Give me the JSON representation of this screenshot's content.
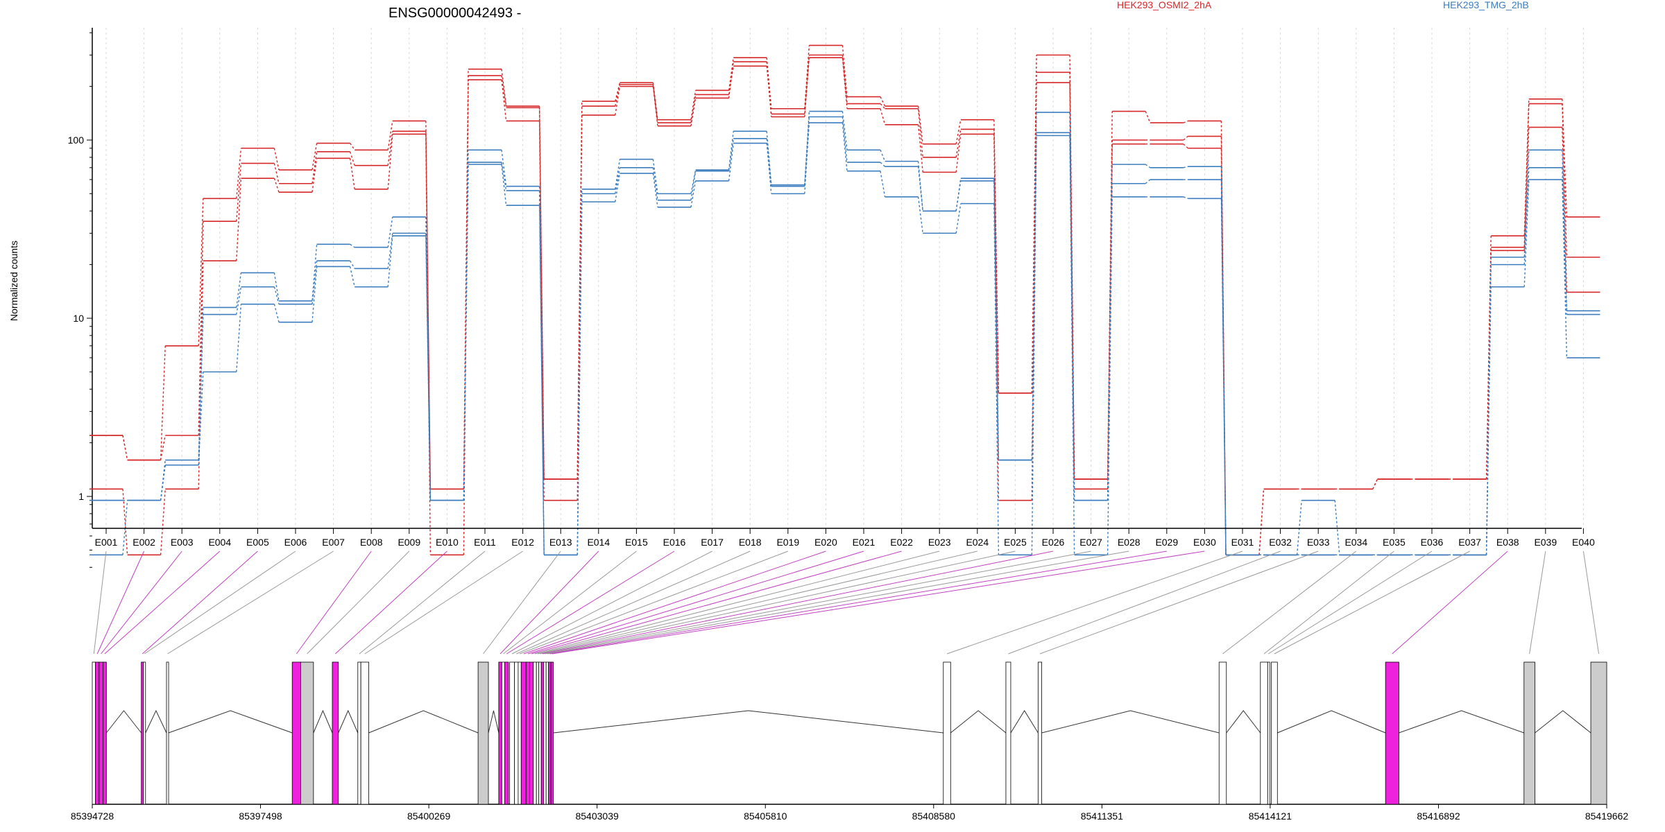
{
  "chart_data": {
    "type": "line",
    "title": "ENSG00000042493 -",
    "ylabel": "Normalized counts",
    "xlabel": "",
    "y_scale": "log",
    "ylim": [
      0.4,
      400
    ],
    "y_ticks": [
      1,
      10,
      100
    ],
    "y_tick_labels": [
      "1",
      "10",
      "100"
    ],
    "grid": "vertical dashed",
    "categories": [
      "E001",
      "E002",
      "E003",
      "E004",
      "E005",
      "E006",
      "E007",
      "E008",
      "E009",
      "E010",
      "E011",
      "E012",
      "E013",
      "E014",
      "E015",
      "E016",
      "E017",
      "E018",
      "E019",
      "E020",
      "E021",
      "E022",
      "E023",
      "E024",
      "E025",
      "E026",
      "E027",
      "E028",
      "E029",
      "E030",
      "E031",
      "E032",
      "E033",
      "E034",
      "E035",
      "E036",
      "E037",
      "E038",
      "E039",
      "E040"
    ],
    "legend": [
      {
        "label": "HEK293_OSMI2_2hA",
        "color": "#d62728"
      },
      {
        "label": "HEK293_TMG_2hB",
        "color": "#3b7dbf"
      }
    ],
    "series": [
      {
        "group": "HEK293_OSMI2_2hA",
        "color": "#d62728",
        "values": [
          2.2,
          1.6,
          7.0,
          47,
          90,
          68,
          96,
          88,
          128,
          1.1,
          250,
          155,
          1.25,
          165,
          210,
          130,
          190,
          290,
          150,
          340,
          175,
          155,
          95,
          130,
          3.8,
          300,
          1.25,
          145,
          125,
          128,
          0.47,
          1.1,
          1.1,
          1.1,
          1.25,
          1.25,
          1.25,
          29,
          170,
          37
        ]
      },
      {
        "group": "HEK293_OSMI2_2hA",
        "color": "#d62728",
        "values": [
          2.2,
          1.6,
          2.2,
          35,
          74,
          57,
          86,
          72,
          112,
          1.1,
          230,
          152,
          1.25,
          155,
          205,
          125,
          180,
          260,
          140,
          300,
          160,
          150,
          80,
          115,
          3.8,
          240,
          1.25,
          100,
          100,
          105,
          0.47,
          1.1,
          1.1,
          1.1,
          1.25,
          1.25,
          1.25,
          25,
          160,
          22
        ]
      },
      {
        "group": "HEK293_OSMI2_2hA",
        "color": "#d62728",
        "values": [
          1.1,
          0.47,
          1.1,
          21,
          61,
          51,
          79,
          53,
          108,
          0.47,
          218,
          128,
          0.95,
          138,
          200,
          120,
          172,
          275,
          135,
          290,
          150,
          122,
          66,
          108,
          0.95,
          210,
          1.1,
          95,
          95,
          90,
          0.47,
          0.47,
          0.47,
          0.47,
          0.47,
          0.47,
          0.47,
          24,
          118,
          14
        ]
      },
      {
        "group": "HEK293_TMG_2hB",
        "color": "#3b7dbf",
        "values": [
          0.95,
          0.95,
          1.6,
          11.5,
          18,
          12.5,
          26,
          25,
          37,
          0.95,
          88,
          55,
          0.47,
          53,
          78,
          50,
          68,
          112,
          56,
          145,
          88,
          76,
          40,
          61,
          1.6,
          143,
          0.95,
          73,
          70,
          71,
          0.47,
          0.47,
          0.95,
          0.47,
          0.47,
          0.47,
          0.47,
          22,
          88,
          11
        ]
      },
      {
        "group": "HEK293_TMG_2hB",
        "color": "#3b7dbf",
        "values": [
          0.95,
          0.95,
          1.5,
          10.5,
          15,
          12,
          21,
          19,
          30,
          0.95,
          75,
          52,
          0.47,
          50,
          70,
          46,
          67,
          102,
          55,
          135,
          75,
          71,
          40,
          59,
          1.6,
          110,
          0.95,
          57,
          60,
          60,
          0.47,
          0.47,
          0.47,
          0.47,
          0.47,
          0.47,
          0.47,
          20,
          70,
          10.5
        ]
      },
      {
        "group": "HEK293_TMG_2hB",
        "color": "#3b7dbf",
        "values": [
          0.47,
          0.95,
          1.5,
          5,
          12,
          9.5,
          19.5,
          15,
          29,
          0.95,
          73,
          43,
          0.47,
          45,
          65,
          42,
          59,
          96,
          50,
          125,
          67,
          48,
          30,
          44,
          0.47,
          106,
          0.47,
          48,
          48,
          47,
          0.47,
          0.47,
          0.47,
          0.47,
          0.47,
          0.47,
          0.47,
          15,
          60,
          6
        ]
      }
    ],
    "genome_axis": {
      "ticks": [
        "85394728",
        "85397498",
        "85400269",
        "85403039",
        "85405810",
        "85408580",
        "85411351",
        "85414121",
        "85416892",
        "85419662"
      ],
      "exons": [
        {
          "id": "E001",
          "start": 85394728,
          "end": 85394780,
          "highlight": false
        },
        {
          "id": "E002",
          "start": 85394780,
          "end": 85394840,
          "highlight": true
        },
        {
          "id": "E003",
          "start": 85394840,
          "end": 85394905,
          "highlight": true
        },
        {
          "id": "E004",
          "start": 85394905,
          "end": 85394960,
          "highlight": true
        },
        {
          "id": "E005",
          "start": 85395535,
          "end": 85395570,
          "highlight": true
        },
        {
          "id": "E006",
          "start": 85395570,
          "end": 85395605,
          "highlight": false
        },
        {
          "id": "E007",
          "start": 85395950,
          "end": 85395985,
          "highlight": false
        },
        {
          "id": "E008",
          "start": 85398020,
          "end": 85398160,
          "highlight": true
        },
        {
          "id": "E009",
          "start": 85398160,
          "end": 85398370,
          "highlight": false
        },
        {
          "id": "E010",
          "start": 85398680,
          "end": 85398780,
          "highlight": true
        },
        {
          "id": "E011",
          "start": 85399100,
          "end": 85399150,
          "highlight": false
        },
        {
          "id": "E012",
          "start": 85399150,
          "end": 85399280,
          "highlight": false
        },
        {
          "id": "E013",
          "start": 85401080,
          "end": 85401250,
          "highlight": false
        },
        {
          "id": "E014",
          "start": 85401420,
          "end": 85401470,
          "highlight": true
        },
        {
          "id": "E015",
          "start": 85401470,
          "end": 85401520,
          "highlight": false
        },
        {
          "id": "E016",
          "start": 85401520,
          "end": 85401580,
          "highlight": true
        },
        {
          "id": "E017",
          "start": 85401600,
          "end": 85401680,
          "highlight": false
        },
        {
          "id": "E018",
          "start": 85401680,
          "end": 85401740,
          "highlight": false
        },
        {
          "id": "E019",
          "start": 85401740,
          "end": 85401790,
          "highlight": false
        },
        {
          "id": "E020",
          "start": 85401790,
          "end": 85401870,
          "highlight": true
        },
        {
          "id": "E021",
          "start": 85401870,
          "end": 85401930,
          "highlight": true
        },
        {
          "id": "E022",
          "start": 85401930,
          "end": 85401990,
          "highlight": true
        },
        {
          "id": "E023",
          "start": 85401990,
          "end": 85402040,
          "highlight": false
        },
        {
          "id": "E024",
          "start": 85402040,
          "end": 85402080,
          "highlight": false
        },
        {
          "id": "E025",
          "start": 85402080,
          "end": 85402120,
          "highlight": false
        },
        {
          "id": "E026",
          "start": 85402120,
          "end": 85402160,
          "highlight": true
        },
        {
          "id": "E027",
          "start": 85402160,
          "end": 85402200,
          "highlight": false
        },
        {
          "id": "E028",
          "start": 85402200,
          "end": 85402240,
          "highlight": false
        },
        {
          "id": "E029",
          "start": 85402240,
          "end": 85402280,
          "highlight": true
        },
        {
          "id": "E030",
          "start": 85402280,
          "end": 85402320,
          "highlight": true
        },
        {
          "id": "E031",
          "start": 85408740,
          "end": 85408860,
          "highlight": false
        },
        {
          "id": "E032",
          "start": 85409770,
          "end": 85409850,
          "highlight": false
        },
        {
          "id": "E033",
          "start": 85410300,
          "end": 85410360,
          "highlight": false
        },
        {
          "id": "E034",
          "start": 85413280,
          "end": 85413400,
          "highlight": false
        },
        {
          "id": "E035",
          "start": 85413960,
          "end": 85414080,
          "highlight": false
        },
        {
          "id": "E036",
          "start": 85414080,
          "end": 85414100,
          "highlight": false
        },
        {
          "id": "E037",
          "start": 85414140,
          "end": 85414240,
          "highlight": false
        },
        {
          "id": "E038",
          "start": 85416020,
          "end": 85416240,
          "highlight": true
        },
        {
          "id": "E039",
          "start": 85418300,
          "end": 85418480,
          "highlight": false
        },
        {
          "id": "E040",
          "start": 85419400,
          "end": 85419662,
          "highlight": false
        }
      ]
    }
  }
}
